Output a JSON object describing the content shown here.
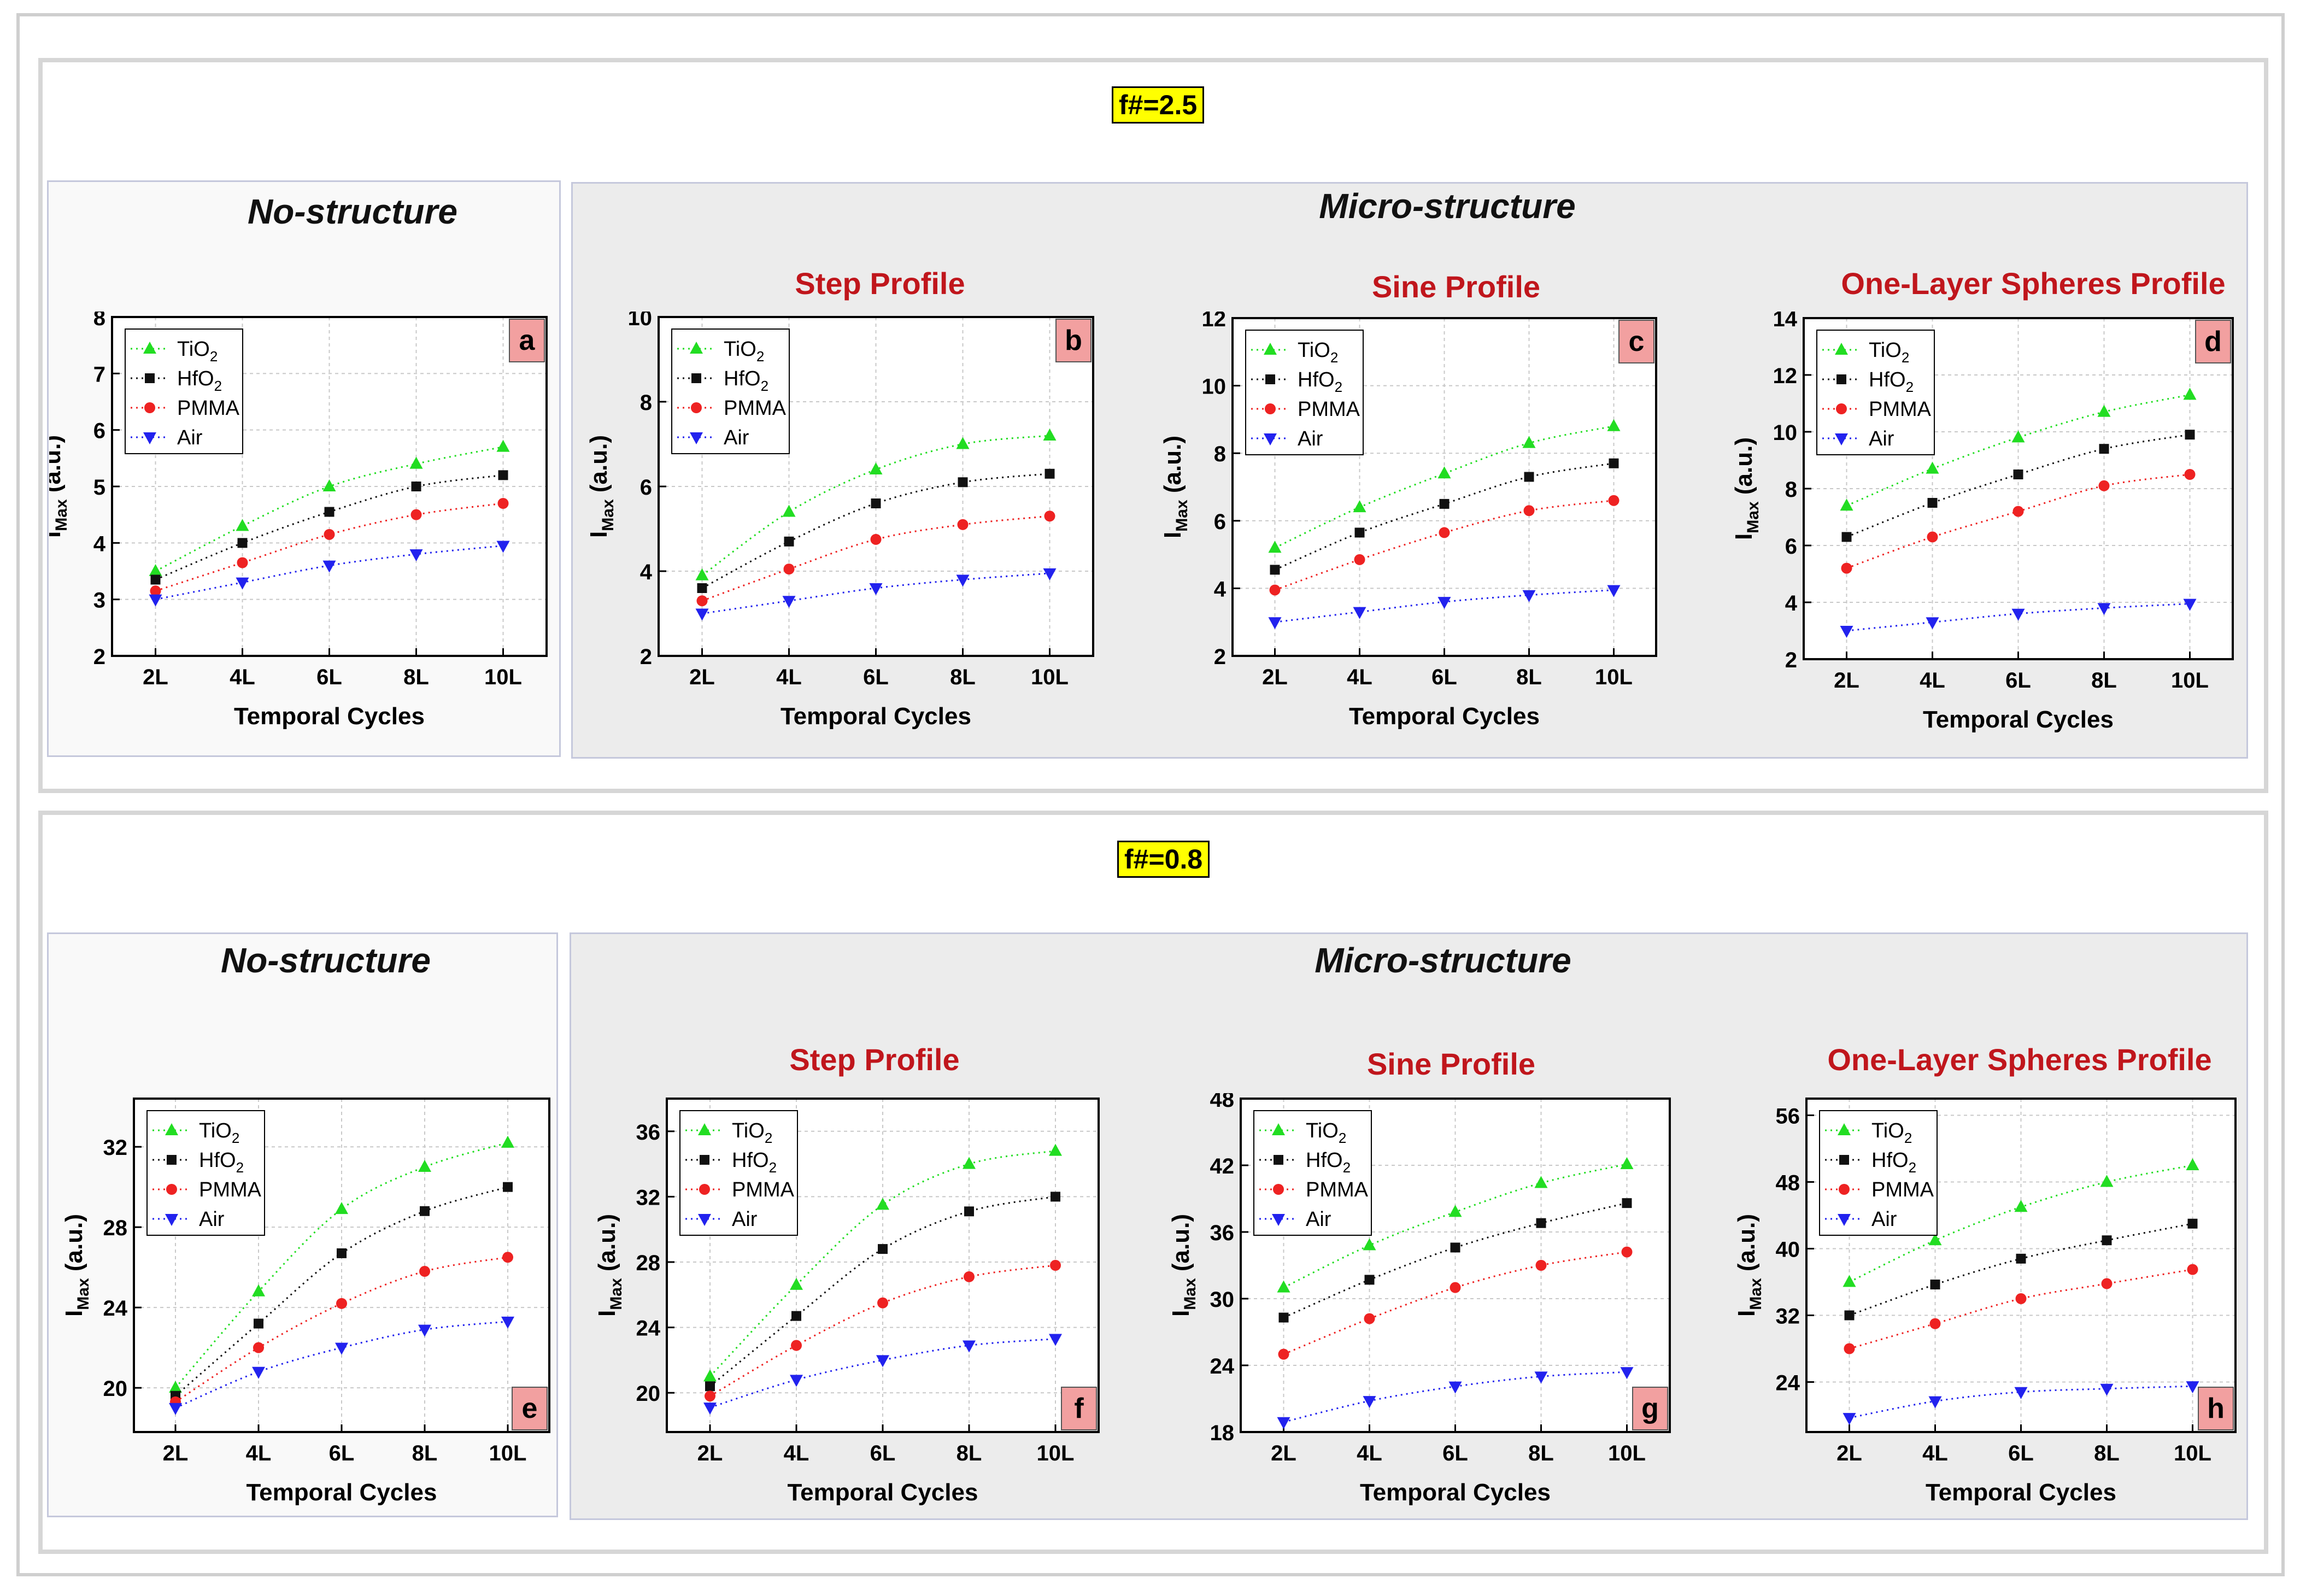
{
  "blocks": [
    {
      "fnumber": "f#=2.5",
      "nostructure_title": "No-structure",
      "micro_title": "Micro-structure",
      "profiles": [
        "Step Profile",
        "Sine Profile",
        "One-Layer Spheres Profile"
      ]
    },
    {
      "fnumber": "f#=0.8",
      "nostructure_title": "No-structure",
      "micro_title": "Micro-structure",
      "profiles": [
        "Step Profile",
        "Sine Profile",
        "One-Layer Spheres Profile"
      ]
    }
  ],
  "colors": {
    "TiO2": "#22dd22",
    "HfO2": "#111111",
    "PMMA": "#ee2222",
    "Air": "#2222ee",
    "panel_label_bg": "#f2a0a0"
  },
  "chart_data": [
    {
      "id": "a",
      "type": "scatter",
      "label": "a",
      "xlabel": "Temporal Cycles",
      "ylabel": "I_Max (a.u.)",
      "categories": [
        "2L",
        "4L",
        "6L",
        "8L",
        "10L"
      ],
      "ylim": [
        2,
        8
      ],
      "yticks": [
        2,
        3,
        4,
        5,
        6,
        7,
        8
      ],
      "label_pos": "top-right",
      "series": [
        {
          "name": "TiO2",
          "values": [
            3.5,
            4.3,
            5.0,
            5.4,
            5.7
          ]
        },
        {
          "name": "HfO2",
          "values": [
            3.35,
            4.0,
            4.55,
            5.0,
            5.2
          ]
        },
        {
          "name": "PMMA",
          "values": [
            3.15,
            3.65,
            4.15,
            4.5,
            4.7
          ]
        },
        {
          "name": "Air",
          "values": [
            3.0,
            3.3,
            3.6,
            3.8,
            3.95
          ]
        }
      ]
    },
    {
      "id": "b",
      "type": "scatter",
      "label": "b",
      "xlabel": "Temporal Cycles",
      "ylabel": "I_Max (a.u.)",
      "categories": [
        "2L",
        "4L",
        "6L",
        "8L",
        "10L"
      ],
      "ylim": [
        2,
        10
      ],
      "yticks": [
        2,
        4,
        6,
        8,
        10
      ],
      "label_pos": "top-right",
      "series": [
        {
          "name": "TiO2",
          "values": [
            3.9,
            5.4,
            6.4,
            7.0,
            7.2
          ]
        },
        {
          "name": "HfO2",
          "values": [
            3.6,
            4.7,
            5.6,
            6.1,
            6.3
          ]
        },
        {
          "name": "PMMA",
          "values": [
            3.3,
            4.05,
            4.75,
            5.1,
            5.3
          ]
        },
        {
          "name": "Air",
          "values": [
            3.0,
            3.3,
            3.6,
            3.8,
            3.95
          ]
        }
      ]
    },
    {
      "id": "c",
      "type": "scatter",
      "label": "c",
      "xlabel": "Temporal Cycles",
      "ylabel": "I_Max (a.u.)",
      "categories": [
        "2L",
        "4L",
        "6L",
        "8L",
        "10L"
      ],
      "ylim": [
        2,
        12
      ],
      "yticks": [
        2,
        4,
        6,
        8,
        10,
        12
      ],
      "label_pos": "top-right",
      "series": [
        {
          "name": "TiO2",
          "values": [
            5.2,
            6.4,
            7.4,
            8.3,
            8.8
          ]
        },
        {
          "name": "HfO2",
          "values": [
            4.55,
            5.65,
            6.5,
            7.3,
            7.7
          ]
        },
        {
          "name": "PMMA",
          "values": [
            3.95,
            4.85,
            5.65,
            6.3,
            6.6
          ]
        },
        {
          "name": "Air",
          "values": [
            3.0,
            3.3,
            3.6,
            3.8,
            3.95
          ]
        }
      ]
    },
    {
      "id": "d",
      "type": "scatter",
      "label": "d",
      "xlabel": "Temporal Cycles",
      "ylabel": "I_Max (a.u.)",
      "categories": [
        "2L",
        "4L",
        "6L",
        "8L",
        "10L"
      ],
      "ylim": [
        2,
        14
      ],
      "yticks": [
        2,
        4,
        6,
        8,
        10,
        12,
        14
      ],
      "label_pos": "top-right",
      "series": [
        {
          "name": "TiO2",
          "values": [
            7.4,
            8.7,
            9.8,
            10.7,
            11.3
          ]
        },
        {
          "name": "HfO2",
          "values": [
            6.3,
            7.5,
            8.5,
            9.4,
            9.9
          ]
        },
        {
          "name": "PMMA",
          "values": [
            5.2,
            6.3,
            7.2,
            8.1,
            8.5
          ]
        },
        {
          "name": "Air",
          "values": [
            3.0,
            3.3,
            3.6,
            3.8,
            3.95
          ]
        }
      ]
    },
    {
      "id": "e",
      "type": "scatter",
      "label": "e",
      "xlabel": "Temporal Cycles",
      "ylabel": "I_Max (a.u.)",
      "categories": [
        "2L",
        "4L",
        "6L",
        "8L",
        "10L"
      ],
      "ylim": [
        17.8,
        34.4
      ],
      "yticks": [
        20,
        24,
        28,
        32
      ],
      "label_pos": "bottom-right",
      "series": [
        {
          "name": "TiO2",
          "values": [
            20.0,
            24.8,
            28.9,
            31.0,
            32.2
          ]
        },
        {
          "name": "HfO2",
          "values": [
            19.6,
            23.2,
            26.7,
            28.8,
            30.0
          ]
        },
        {
          "name": "PMMA",
          "values": [
            19.3,
            22.0,
            24.2,
            25.8,
            26.5
          ]
        },
        {
          "name": "Air",
          "values": [
            19.0,
            20.8,
            22.0,
            22.9,
            23.3
          ]
        }
      ]
    },
    {
      "id": "f",
      "type": "scatter",
      "label": "f",
      "xlabel": "Temporal Cycles",
      "ylabel": "I_Max (a.u.)",
      "categories": [
        "2L",
        "4L",
        "6L",
        "8L",
        "10L"
      ],
      "ylim": [
        17.6,
        38.0
      ],
      "yticks": [
        20,
        24,
        28,
        32,
        36
      ],
      "label_pos": "bottom-right",
      "series": [
        {
          "name": "TiO2",
          "values": [
            21.0,
            26.6,
            31.5,
            34.0,
            34.8
          ]
        },
        {
          "name": "HfO2",
          "values": [
            20.4,
            24.7,
            28.8,
            31.1,
            32.0
          ]
        },
        {
          "name": "PMMA",
          "values": [
            19.8,
            22.9,
            25.5,
            27.1,
            27.8
          ]
        },
        {
          "name": "Air",
          "values": [
            19.1,
            20.8,
            22.0,
            22.9,
            23.3
          ]
        }
      ]
    },
    {
      "id": "g",
      "type": "scatter",
      "label": "g",
      "xlabel": "Temporal Cycles",
      "ylabel": "I_Max (a.u.)",
      "categories": [
        "2L",
        "4L",
        "6L",
        "8L",
        "10L"
      ],
      "ylim": [
        18,
        48
      ],
      "yticks": [
        18,
        24,
        30,
        36,
        42,
        48
      ],
      "label_pos": "bottom-right",
      "series": [
        {
          "name": "TiO2",
          "values": [
            31.0,
            34.8,
            37.8,
            40.4,
            42.1
          ]
        },
        {
          "name": "HfO2",
          "values": [
            28.3,
            31.7,
            34.6,
            36.8,
            38.6
          ]
        },
        {
          "name": "PMMA",
          "values": [
            25.0,
            28.2,
            31.0,
            33.0,
            34.2
          ]
        },
        {
          "name": "Air",
          "values": [
            18.9,
            20.8,
            22.1,
            23.0,
            23.4
          ]
        }
      ]
    },
    {
      "id": "h",
      "type": "scatter",
      "label": "h",
      "xlabel": "Temporal Cycles",
      "ylabel": "I_Max (a.u.)",
      "categories": [
        "2L",
        "4L",
        "6L",
        "8L",
        "10L"
      ],
      "ylim": [
        18,
        58
      ],
      "yticks": [
        24,
        32,
        40,
        48,
        56
      ],
      "label_pos": "bottom-right",
      "series": [
        {
          "name": "TiO2",
          "values": [
            36.0,
            41.0,
            45.0,
            48.0,
            50.0
          ]
        },
        {
          "name": "HfO2",
          "values": [
            32.0,
            35.7,
            38.8,
            41.0,
            43.0
          ]
        },
        {
          "name": "PMMA",
          "values": [
            28.0,
            31.0,
            34.0,
            35.8,
            37.5
          ]
        },
        {
          "name": "Air",
          "values": [
            19.7,
            21.7,
            22.8,
            23.2,
            23.5
          ]
        }
      ]
    }
  ]
}
